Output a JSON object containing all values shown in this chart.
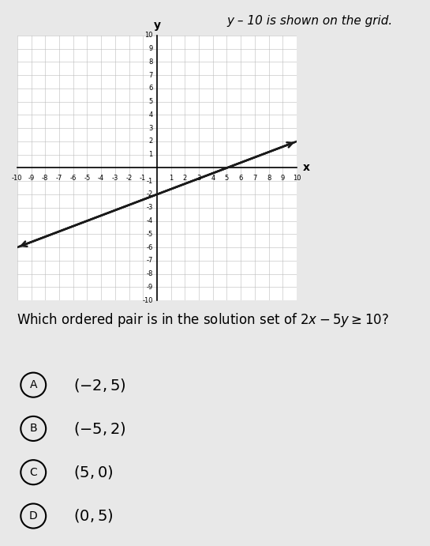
{
  "xlim": [
    -10,
    10
  ],
  "ylim": [
    -10,
    10
  ],
  "grid_color": "#bbbbbb",
  "line_color": "#1a1a1a",
  "graph_bg": "#ffffff",
  "border_color": "#333333",
  "bg_color": "#e8e8e8",
  "top_text": "y – 10 is shown on the grid.",
  "question": "Which ordered pair is in the solution set of $2x - 5y \\geq 10$?",
  "choice_labels": [
    "A",
    "B",
    "C",
    "D"
  ],
  "choice_texts": [
    "$(-2,5)$",
    "$(-5,2)$",
    "$(5,0)$",
    "$(0,5)$"
  ],
  "tick_fontsize": 6,
  "axis_label_fontsize": 10,
  "question_fontsize": 12,
  "choice_fontsize": 14
}
